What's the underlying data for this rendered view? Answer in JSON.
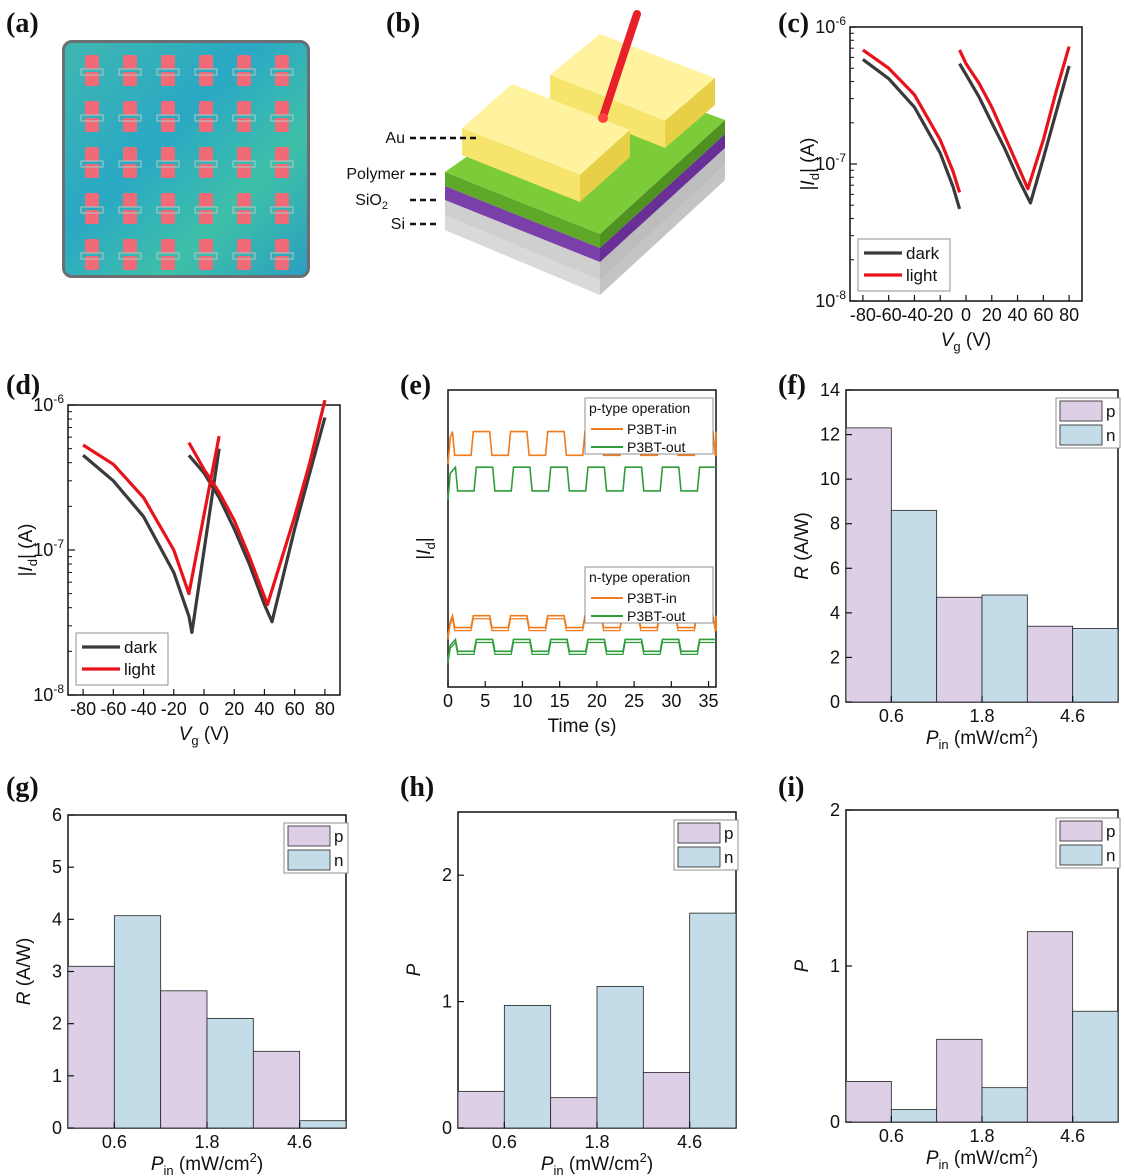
{
  "panel_labels": [
    "(a)",
    "(b)",
    "(c)",
    "(d)",
    "(e)",
    "(f)",
    "(g)",
    "(h)",
    "(i)"
  ],
  "device": {
    "layers": [
      "Au",
      "Polymer",
      "SiO2",
      "Si"
    ],
    "colors": {
      "au": "#f7e46c",
      "polymer": "#7ccc3a",
      "sio2": "#7a3fa8",
      "si": "#c4c4c4",
      "laser": "#e8202a"
    }
  },
  "colors": {
    "dark": "#3a3a3a",
    "light": "#e8131a",
    "p": "#ddd0e6",
    "n": "#c4dce8",
    "orange": "#f07b1c",
    "green": "#2e9e3a"
  },
  "chart_data": [
    {
      "id": "c",
      "type": "line",
      "yscale": "log",
      "xlabel": "Vg (V)",
      "ylabel": "|Id| (A)",
      "xlim": [
        -90,
        90
      ],
      "ylim": [
        1e-08,
        1e-06
      ],
      "xticks": [
        "-80",
        "-60",
        "-40",
        "-20",
        "0",
        "20",
        "40",
        "60",
        "80"
      ],
      "yticks": [
        "10-8",
        "10-7",
        "10-6"
      ],
      "legend": {
        "position": "bottom-left",
        "entries": [
          "dark",
          "light"
        ]
      },
      "series": [
        {
          "name": "dark",
          "x": [
            -80,
            -60,
            -40,
            -20,
            -10,
            -5,
            0,
            5,
            10,
            20,
            30,
            40,
            50,
            60,
            70,
            80
          ],
          "segments": [
            [
              -80,
              -60,
              -40,
              -20,
              -10,
              -5
            ],
            [
              -5,
              0,
              10,
              20,
              30,
              40,
              50,
              60,
              70,
              80
            ]
          ],
          "y": [
            [
              5.8e-07,
              4.2e-07,
              2.6e-07,
              1.2e-07,
              6.8e-08,
              4.7e-08
            ],
            [
              5.4e-07,
              4.5e-07,
              3.1e-07,
              2e-07,
              1.3e-07,
              8e-08,
              5.2e-08,
              1.1e-07,
              2.4e-07,
              5.2e-07
            ]
          ]
        },
        {
          "name": "light",
          "segments": [
            [
              -80,
              -60,
              -40,
              -20,
              -10,
              -5
            ],
            [
              -5,
              0,
              10,
              20,
              30,
              40,
              48,
              60,
              70,
              80
            ]
          ],
          "y": [
            [
              6.8e-07,
              5e-07,
              3.2e-07,
              1.5e-07,
              8.8e-08,
              6.2e-08
            ],
            [
              6.8e-07,
              5.4e-07,
              3.9e-07,
              2.6e-07,
              1.6e-07,
              9.8e-08,
              6.6e-08,
              1.5e-07,
              3.4e-07,
              7.2e-07
            ]
          ]
        }
      ]
    },
    {
      "id": "d",
      "type": "line",
      "yscale": "log",
      "xlabel": "Vg (V)",
      "ylabel": "|Id| (A)",
      "xlim": [
        -90,
        90
      ],
      "ylim": [
        1e-08,
        1e-06
      ],
      "xticks": [
        "-80",
        "-60",
        "-40",
        "-20",
        "0",
        "20",
        "40",
        "60",
        "80"
      ],
      "yticks": [
        "10-8",
        "10-7",
        "10-6"
      ],
      "legend": {
        "position": "bottom-left",
        "entries": [
          "dark",
          "light"
        ]
      },
      "series": [
        {
          "name": "dark",
          "segments": [
            [
              -80,
              -60,
              -40,
              -20,
              -10,
              -8,
              10
            ],
            [
              -10,
              0,
              10,
              20,
              30,
              40,
              45,
              60,
              70,
              80
            ]
          ],
          "y": [
            [
              4.5e-07,
              3e-07,
              1.7e-07,
              7e-08,
              3.5e-08,
              2.7e-08,
              5e-07
            ],
            [
              4.5e-07,
              3.4e-07,
              2.3e-07,
              1.4e-07,
              8e-08,
              4.2e-08,
              3.2e-08,
              1.4e-07,
              3.4e-07,
              8.2e-07
            ]
          ]
        },
        {
          "name": "light",
          "segments": [
            [
              -80,
              -60,
              -40,
              -20,
              -10,
              10
            ],
            [
              -10,
              0,
              10,
              20,
              30,
              42,
              60,
              70,
              80
            ]
          ],
          "y": [
            [
              5.3e-07,
              3.9e-07,
              2.3e-07,
              1e-07,
              5e-08,
              6.1e-07
            ],
            [
              5.5e-07,
              3.6e-07,
              2.5e-07,
              1.6e-07,
              9e-08,
              4.2e-08,
              1.7e-07,
              4e-07,
              1.08e-06
            ]
          ]
        }
      ]
    },
    {
      "id": "e",
      "type": "line",
      "xlabel": "Time (s)",
      "ylabel": "|Id|",
      "xlim": [
        0,
        36
      ],
      "xticks": [
        "0",
        "5",
        "10",
        "15",
        "20",
        "25",
        "30",
        "35"
      ],
      "legend_groups": [
        {
          "title": "p-type operation",
          "entries": [
            "P3BT-in",
            "P3BT-out"
          ]
        },
        {
          "title": "n-type operation",
          "entries": [
            "P3BT-in",
            "P3BT-out"
          ]
        }
      ],
      "period_s": 5,
      "series": [
        {
          "name": "P3BT-in",
          "group": "p-type operation",
          "low": 0.78,
          "high": 0.86
        },
        {
          "name": "P3BT-out",
          "group": "p-type operation",
          "low": 0.66,
          "high": 0.74
        },
        {
          "name": "P3BT-in",
          "group": "n-type operation",
          "low": 0.2,
          "high": 0.24
        },
        {
          "name": "P3BT-out",
          "group": "n-type operation",
          "low": 0.12,
          "high": 0.16
        }
      ]
    },
    {
      "id": "f",
      "type": "bar",
      "xlabel": "Pin (mW/cm2)",
      "ylabel": "R (A/W)",
      "categories": [
        "0.6",
        "1.8",
        "4.6"
      ],
      "ylim": [
        0,
        14
      ],
      "yticks": [
        "0",
        "2",
        "4",
        "6",
        "8",
        "10",
        "12",
        "14"
      ],
      "legend": {
        "position": "top-right",
        "entries": [
          "p",
          "n"
        ]
      },
      "series": [
        {
          "name": "p",
          "values": [
            12.3,
            4.7,
            3.4
          ]
        },
        {
          "name": "n",
          "values": [
            8.6,
            4.8,
            3.3
          ]
        }
      ]
    },
    {
      "id": "g",
      "type": "bar",
      "xlabel": "Pin (mW/cm2)",
      "ylabel": "R (A/W)",
      "categories": [
        "0.6",
        "1.8",
        "4.6"
      ],
      "ylim": [
        0,
        6
      ],
      "yticks": [
        "0",
        "1",
        "2",
        "3",
        "4",
        "5",
        "6"
      ],
      "legend": {
        "position": "top-right",
        "entries": [
          "p",
          "n"
        ]
      },
      "series": [
        {
          "name": "p",
          "values": [
            3.1,
            2.63,
            1.47
          ]
        },
        {
          "name": "n",
          "values": [
            4.07,
            2.1,
            0.14
          ]
        }
      ]
    },
    {
      "id": "h",
      "type": "bar",
      "xlabel": "Pin (mW/cm2)",
      "ylabel": "P",
      "categories": [
        "0.6",
        "1.8",
        "4.6"
      ],
      "ylim": [
        0,
        2.5
      ],
      "yticks": [
        "0",
        "1",
        "2"
      ],
      "legend": {
        "position": "top-right",
        "entries": [
          "p",
          "n"
        ]
      },
      "series": [
        {
          "name": "p",
          "values": [
            0.29,
            0.24,
            0.44
          ]
        },
        {
          "name": "n",
          "values": [
            0.97,
            1.12,
            1.7
          ]
        }
      ]
    },
    {
      "id": "i",
      "type": "bar",
      "xlabel": "Pin (mW/cm2)",
      "ylabel": "P",
      "categories": [
        "0.6",
        "1.8",
        "4.6"
      ],
      "ylim": [
        0,
        2
      ],
      "yticks": [
        "0",
        "1",
        "2"
      ],
      "legend": {
        "position": "top-right",
        "entries": [
          "p",
          "n"
        ]
      },
      "series": [
        {
          "name": "p",
          "values": [
            0.26,
            0.53,
            1.22
          ]
        },
        {
          "name": "n",
          "values": [
            0.08,
            0.22,
            0.71
          ]
        }
      ]
    }
  ]
}
